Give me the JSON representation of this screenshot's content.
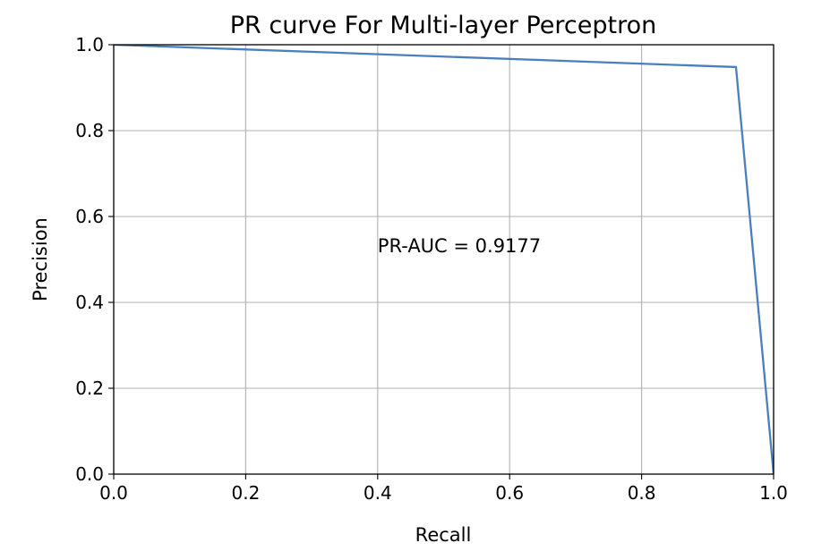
{
  "chart_data": {
    "type": "line",
    "title": "PR curve For Multi-layer Perceptron",
    "xlabel": "Recall",
    "ylabel": "Precision",
    "xlim": [
      0.0,
      1.0
    ],
    "ylim": [
      0.0,
      1.0
    ],
    "xticks": [
      "0.0",
      "0.2",
      "0.4",
      "0.6",
      "0.8",
      "1.0"
    ],
    "yticks": [
      "0.0",
      "0.2",
      "0.4",
      "0.6",
      "0.8",
      "1.0"
    ],
    "grid": true,
    "series": [
      {
        "x": [
          0.0,
          0.943,
          1.0
        ],
        "y": [
          1.0,
          0.948,
          0.0
        ],
        "color": "#4a7fbf"
      }
    ],
    "annotations": [
      {
        "text": "PR-AUC = 0.9177",
        "x": 0.4,
        "y": 0.5
      }
    ]
  }
}
